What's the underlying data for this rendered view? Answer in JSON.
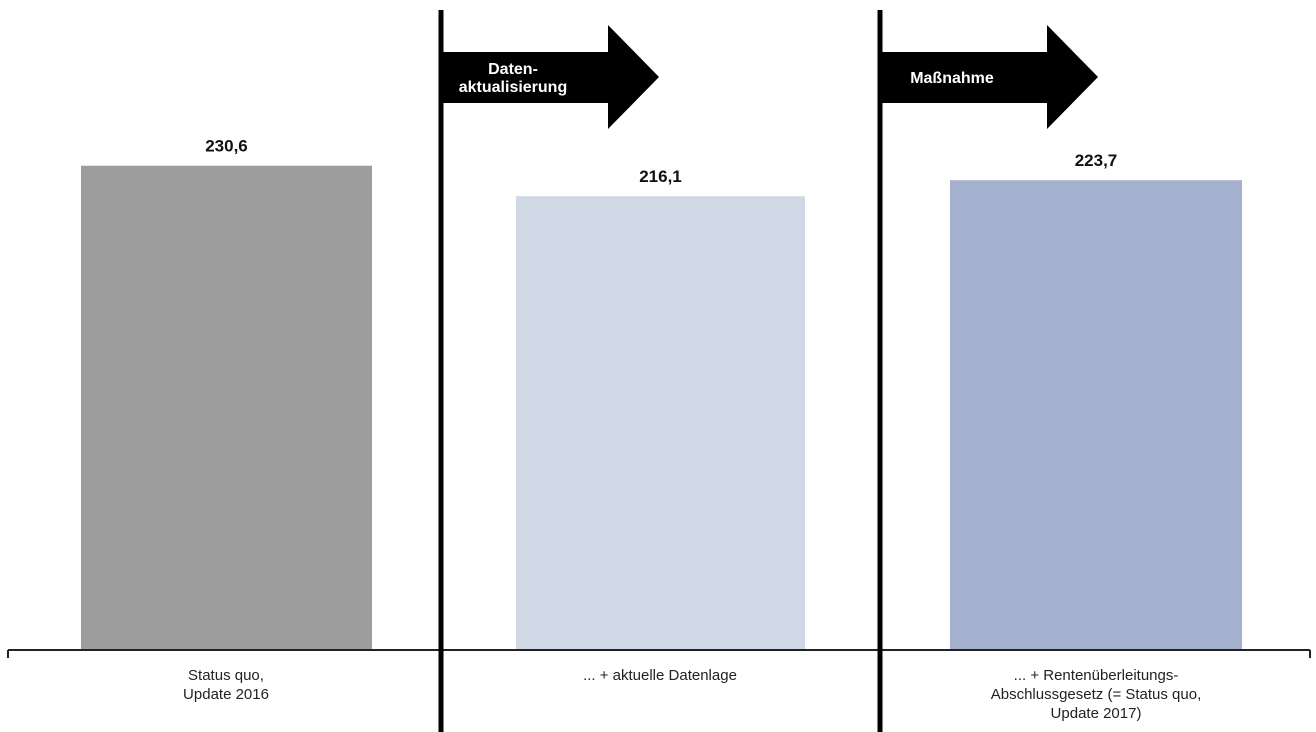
{
  "chart_data": {
    "type": "bar",
    "categories": [
      [
        "Status quo,",
        "Update 2016"
      ],
      [
        "... + aktuelle Datenlage"
      ],
      [
        "... + Rentenüberleitungs-",
        "Abschlussgesetz (= Status quo,",
        "Update 2017)"
      ]
    ],
    "values": [
      230.6,
      216.1,
      223.7
    ],
    "value_labels": [
      "230,6",
      "216,1",
      "223,7"
    ],
    "colors": [
      "#9d9d9e",
      "#d0d8e5",
      "#a3b1cf"
    ],
    "title": "",
    "xlabel": "",
    "ylabel": "",
    "ylim": [
      0,
      250
    ],
    "grid": false,
    "separators": [
      {
        "label": [
          "Daten-",
          "aktualisierung"
        ]
      },
      {
        "label": [
          "Maßnahme"
        ]
      }
    ]
  }
}
